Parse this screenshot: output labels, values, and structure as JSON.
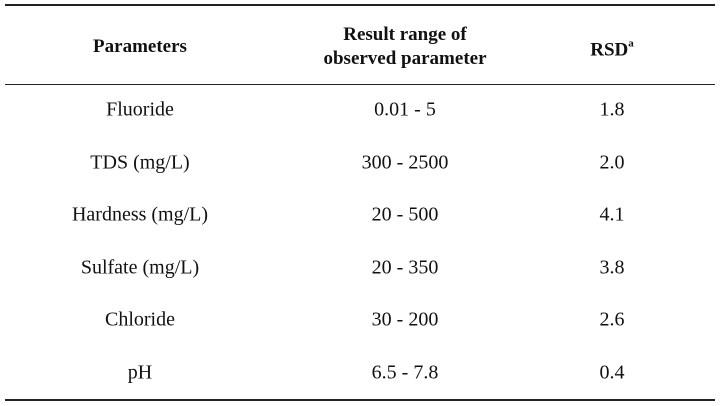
{
  "table": {
    "header": [
      "Parameters",
      "Result range of observed parameter",
      "RSD"
    ],
    "header_superscript": "a",
    "rows": [
      [
        "Fluoride",
        "0.01 - 5",
        "1.8"
      ],
      [
        "TDS (mg/L)",
        "300 - 2500",
        "2.0"
      ],
      [
        "Hardness (mg/L)",
        "20 - 500",
        "4.1"
      ],
      [
        "Sulfate (mg/L)",
        "20 - 350",
        "3.8"
      ],
      [
        "Chloride",
        "30 - 200",
        "2.6"
      ],
      [
        "pH",
        "6.5 - 7.8",
        "0.4"
      ]
    ]
  }
}
